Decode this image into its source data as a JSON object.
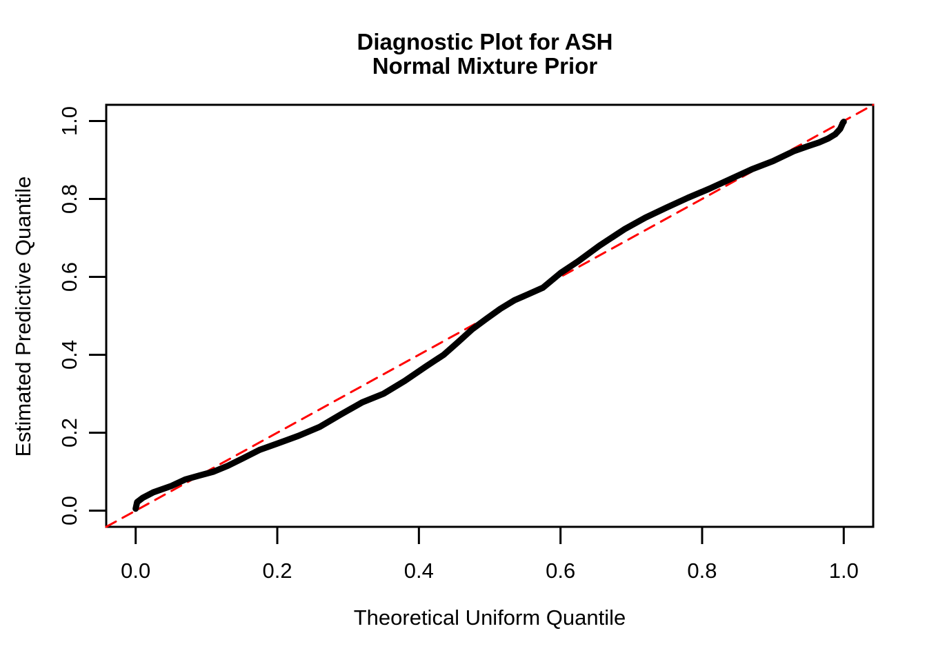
{
  "chart_data": {
    "type": "line",
    "title": "Diagnostic Plot for ASH",
    "subtitle": "Normal Mixture Prior",
    "xlabel": "Theoretical Uniform Quantile",
    "ylabel": "Estimated Predictive Quantile",
    "xlim": [
      -0.0416,
      1.0416
    ],
    "ylim": [
      -0.0416,
      1.0416
    ],
    "grid": false,
    "legend": "none",
    "x_ticks": [
      0.0,
      0.2,
      0.4,
      0.6,
      0.8,
      1.0
    ],
    "y_ticks": [
      0.0,
      0.2,
      0.4,
      0.6,
      0.8,
      1.0
    ],
    "x_tick_labels": [
      "0.0",
      "0.2",
      "0.4",
      "0.6",
      "0.8",
      "1.0"
    ],
    "y_tick_labels": [
      "0.0",
      "0.2",
      "0.4",
      "0.6",
      "0.8",
      "1.0"
    ],
    "colors": {
      "curve": "#000000",
      "reference_line": "#FF0000",
      "frame": "#000000",
      "background": "#FFFFFF"
    },
    "series": [
      {
        "name": "reference-line-y-equals-x",
        "style": "dashed",
        "color": "#FF0000",
        "line_width": 3,
        "points": [
          [
            -0.0416,
            -0.0416
          ],
          [
            1.0416,
            1.0416
          ]
        ]
      },
      {
        "name": "estimated-predictive-quantiles",
        "style": "solid",
        "color": "#000000",
        "line_width": 9,
        "points": [
          [
            0.0,
            0.005
          ],
          [
            0.002,
            0.022
          ],
          [
            0.01,
            0.033
          ],
          [
            0.025,
            0.047
          ],
          [
            0.05,
            0.063
          ],
          [
            0.07,
            0.08
          ],
          [
            0.09,
            0.09
          ],
          [
            0.11,
            0.1
          ],
          [
            0.13,
            0.115
          ],
          [
            0.15,
            0.133
          ],
          [
            0.175,
            0.156
          ],
          [
            0.2,
            0.172
          ],
          [
            0.23,
            0.192
          ],
          [
            0.26,
            0.215
          ],
          [
            0.29,
            0.247
          ],
          [
            0.32,
            0.278
          ],
          [
            0.35,
            0.3
          ],
          [
            0.38,
            0.333
          ],
          [
            0.41,
            0.37
          ],
          [
            0.435,
            0.4
          ],
          [
            0.455,
            0.432
          ],
          [
            0.475,
            0.465
          ],
          [
            0.495,
            0.492
          ],
          [
            0.515,
            0.518
          ],
          [
            0.535,
            0.54
          ],
          [
            0.555,
            0.556
          ],
          [
            0.575,
            0.572
          ],
          [
            0.6,
            0.61
          ],
          [
            0.625,
            0.64
          ],
          [
            0.655,
            0.68
          ],
          [
            0.69,
            0.722
          ],
          [
            0.72,
            0.752
          ],
          [
            0.75,
            0.778
          ],
          [
            0.78,
            0.803
          ],
          [
            0.81,
            0.826
          ],
          [
            0.84,
            0.851
          ],
          [
            0.87,
            0.876
          ],
          [
            0.9,
            0.897
          ],
          [
            0.93,
            0.923
          ],
          [
            0.95,
            0.936
          ],
          [
            0.965,
            0.945
          ],
          [
            0.978,
            0.955
          ],
          [
            0.988,
            0.966
          ],
          [
            0.995,
            0.98
          ],
          [
            0.999,
            0.996
          ],
          [
            1.0,
            0.998
          ]
        ]
      }
    ]
  }
}
